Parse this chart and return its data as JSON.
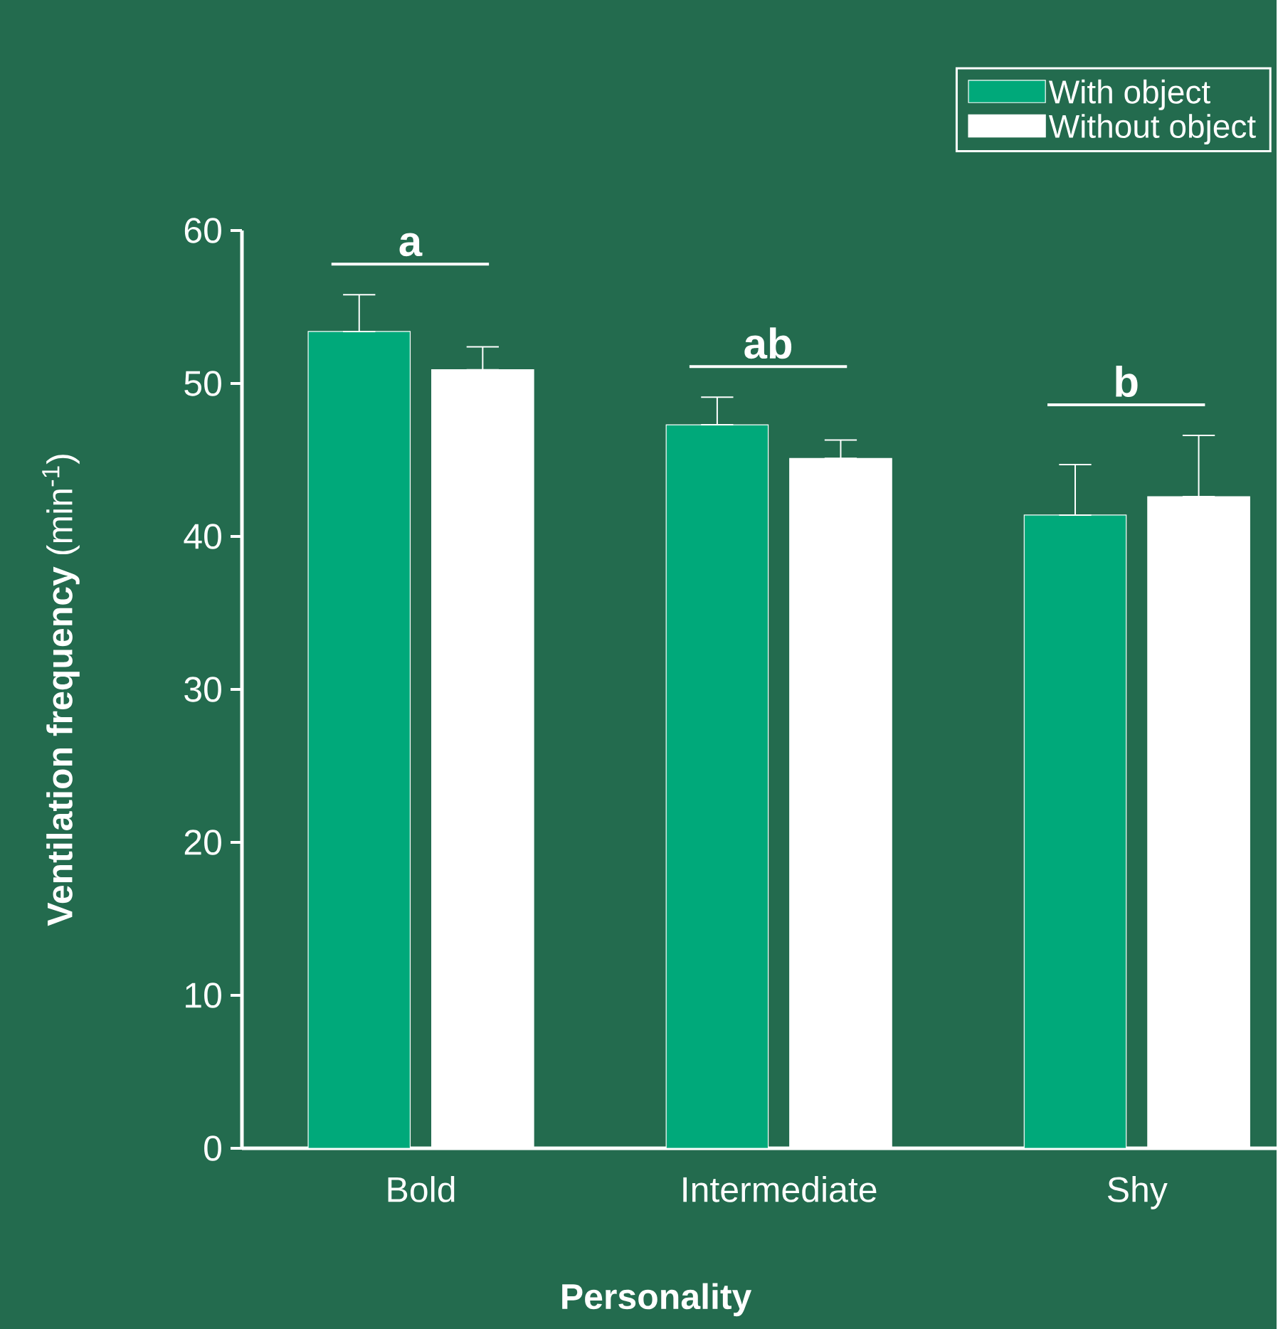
{
  "chart_data": {
    "type": "bar",
    "xlabel": "Personality",
    "ylabel": "**Ventilation frequency** (min$^{-1}$)",
    "categories": [
      "Bold",
      "Intermediate",
      "Shy"
    ],
    "series": [
      {
        "name": "With object",
        "color": "#00a97a",
        "values": [
          53.4,
          47.3,
          41.4
        ],
        "errors": [
          [
            53.4,
            55.8
          ],
          [
            47.3,
            49.1
          ],
          [
            41.4,
            44.7
          ]
        ]
      },
      {
        "name": "Without  object",
        "color": "#ffffff",
        "values": [
          50.9,
          45.1,
          42.6
        ],
        "errors": [
          [
            50.9,
            52.4
          ],
          [
            45.1,
            46.3
          ],
          [
            42.6,
            46.6
          ]
        ]
      }
    ],
    "ylim": [
      0,
      60
    ],
    "yticks": [
      0,
      10,
      20,
      30,
      40,
      50,
      60
    ],
    "legend": "top right",
    "annotations": [
      "a",
      "ab",
      "b"
    ]
  }
}
